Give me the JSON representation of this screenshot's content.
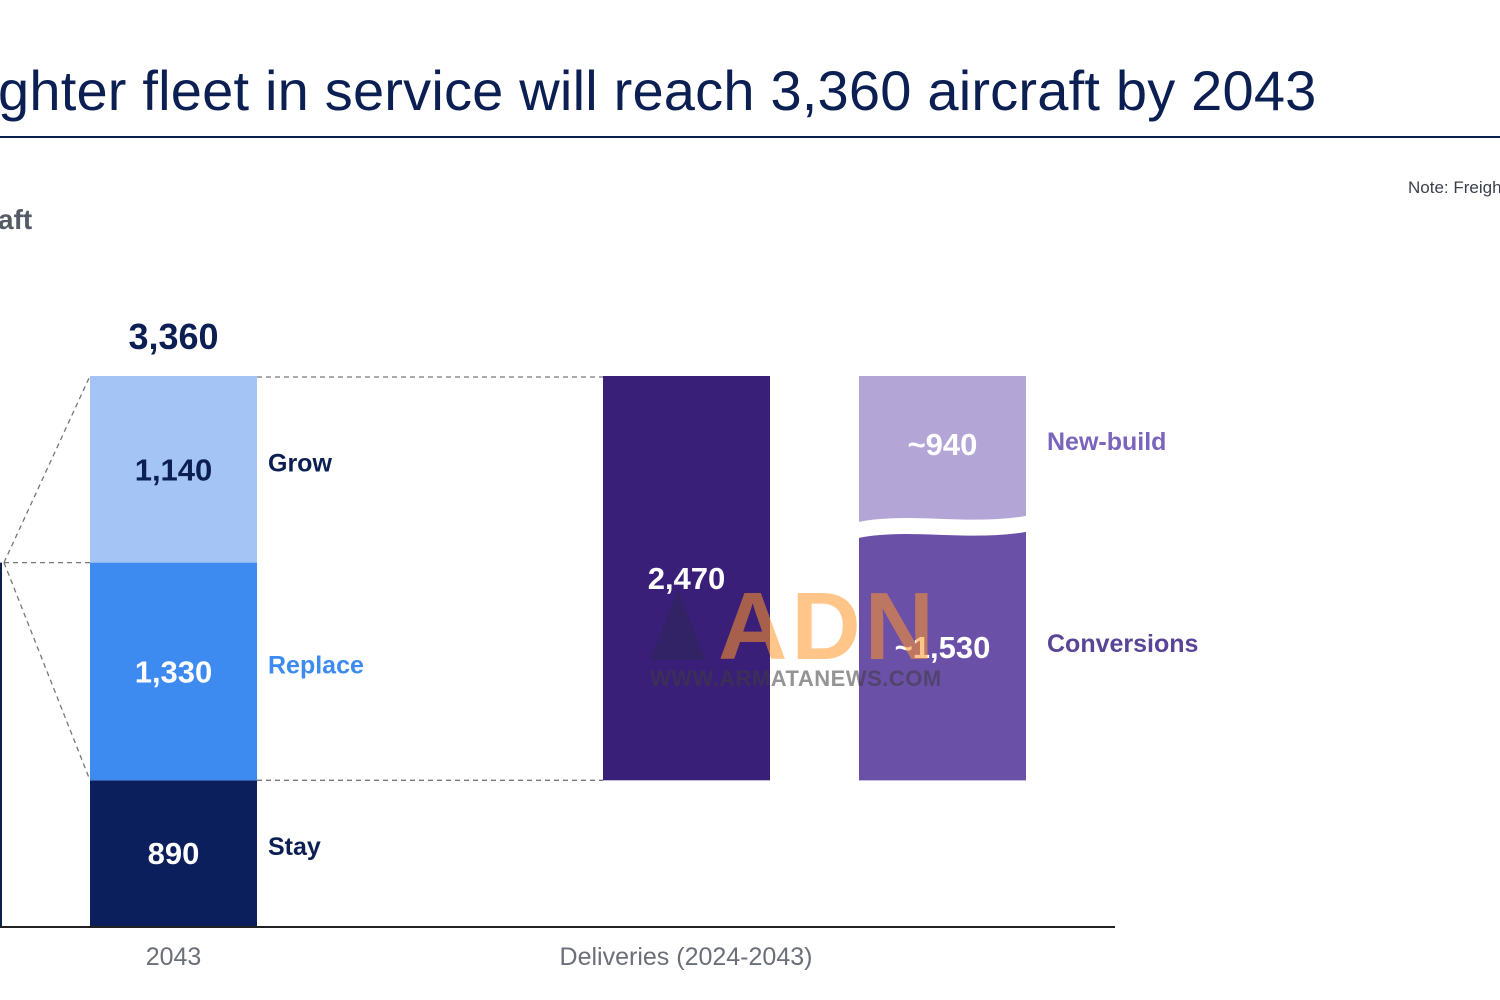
{
  "title": "ghter fleet in service will reach 3,360 aircraft by 2043",
  "unit_label": "aft",
  "note": "Note: Freigh",
  "colors": {
    "grow": "#a3c4f5",
    "replace": "#3d8af0",
    "stay": "#0b1f5c",
    "deliveries": "#3a1f78",
    "newbuild": "#b3a6d6",
    "conversions": "#6b50a8",
    "navy_text": "#0b1f52"
  },
  "watermark": {
    "text": "ADN",
    "url": "WWW.ARMATANEWS.COM"
  },
  "chart_data": {
    "type": "bar",
    "ylim": [
      0,
      3360
    ],
    "stacks": [
      {
        "category": "2043",
        "total_label": "3,360",
        "segments": [
          {
            "name": "Stay",
            "value": 890,
            "label": "890"
          },
          {
            "name": "Replace",
            "value": 1330,
            "label": "1,330"
          },
          {
            "name": "Grow",
            "value": 1140,
            "label": "1,140"
          }
        ]
      },
      {
        "category": "Deliveries (2024-2043)",
        "segments": [
          {
            "value": 2470,
            "label": "2,470"
          }
        ]
      },
      {
        "category": "",
        "segments": [
          {
            "name": "Conversions",
            "value": 1530,
            "label": "~1,530"
          },
          {
            "name": "New-build",
            "value": 940,
            "label": "~940"
          }
        ]
      }
    ],
    "x_labels": [
      "2043",
      "Deliveries (2024-2043)"
    ]
  }
}
